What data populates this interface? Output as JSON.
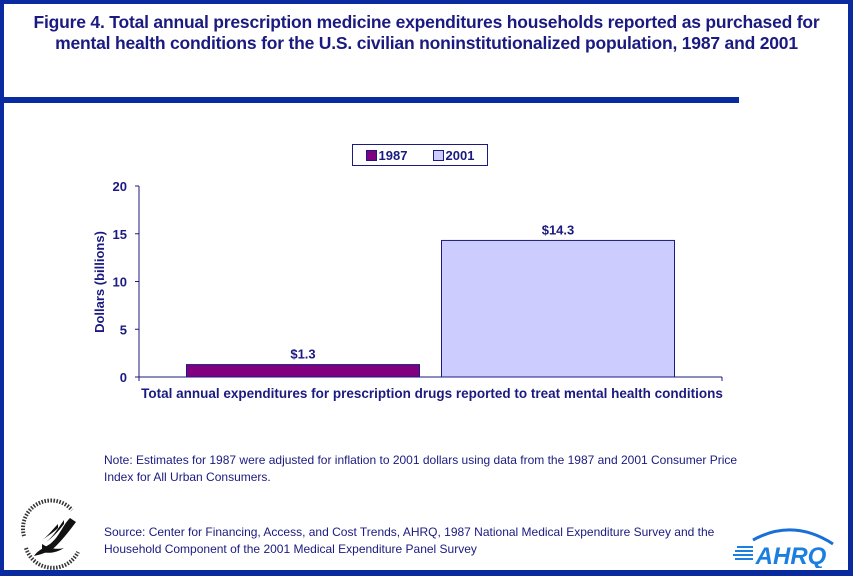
{
  "figure": {
    "title": "Figure 4. Total annual prescription medicine expenditures households reported as purchased for mental health conditions for the U.S. civilian noninstitutionalized population, 1987 and 2001",
    "note": "Note: Estimates for 1987 were adjusted for inflation to 2001 dollars using data from the 1987 and 2001 Consumer Price Index for All Urban Consumers.",
    "source": "Source: Center for Financing, Access, and Cost Trends, AHRQ, 1987 National Medical Expenditure Survey and the Household Component of the 2001 Medical Expenditure Panel Survey",
    "logos": {
      "left": "hhs-eagle-seal",
      "right": "ahrq-logo",
      "right_text": "AHRQ"
    },
    "colors": {
      "frame": "#0a2aa0",
      "text": "#1a1a80",
      "series_1987": "#800080",
      "series_2001": "#ccccff"
    }
  },
  "chart_data": {
    "type": "bar",
    "title": "Figure 4. Total annual prescription medicine expenditures households reported as purchased for mental health conditions for the U.S. civilian noninstitutionalized population, 1987 and 2001",
    "categories": [
      "Total annual expenditures for prescription drugs reported to treat mental health conditions"
    ],
    "series": [
      {
        "name": "1987",
        "values": [
          1.3
        ],
        "data_labels": [
          "$1.3"
        ],
        "color": "#800080"
      },
      {
        "name": "2001",
        "values": [
          14.3
        ],
        "data_labels": [
          "$14.3"
        ],
        "color": "#ccccff"
      }
    ],
    "xlabel": "",
    "ylabel": "Dollars (billions)",
    "ylim": [
      0,
      20
    ],
    "yticks": [
      0,
      5,
      10,
      15,
      20
    ],
    "ytick_labels": [
      "0",
      "5",
      "10",
      "15",
      "20"
    ],
    "grid": false,
    "legend": {
      "placement": "top-center",
      "entries": [
        "1987",
        "2001"
      ]
    }
  }
}
